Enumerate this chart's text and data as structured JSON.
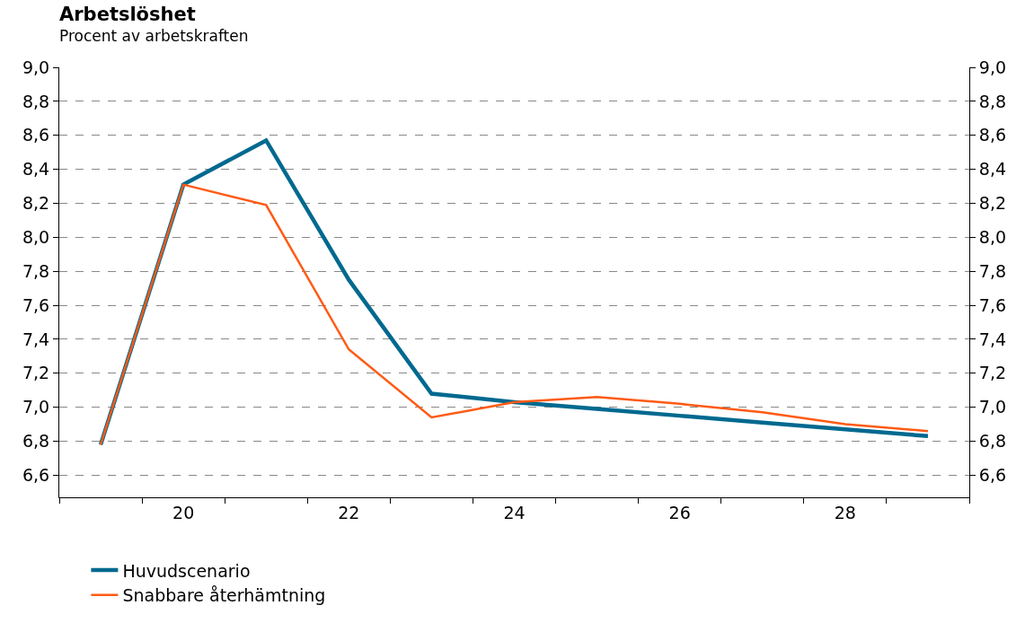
{
  "chart_data": {
    "type": "line",
    "title": "Arbetslöshet",
    "subtitle": "Procent av arbetskraften",
    "x": [
      19,
      20,
      21,
      22,
      23,
      24,
      25,
      26,
      27,
      28,
      29
    ],
    "series": [
      {
        "name": "Huvudscenario",
        "color": "#00698f",
        "values": [
          6.78,
          8.31,
          8.57,
          7.75,
          7.08,
          7.03,
          6.99,
          6.95,
          6.91,
          6.87,
          6.83
        ]
      },
      {
        "name": "Snabbare återhämtning",
        "color": "#ff5a14",
        "values": [
          6.78,
          8.31,
          8.19,
          7.34,
          6.94,
          7.03,
          7.06,
          7.02,
          6.97,
          6.9,
          6.86
        ]
      }
    ],
    "xlim": [
      18.5,
      29.5
    ],
    "xticks": [
      {
        "value": 18.5,
        "label": null
      },
      {
        "value": 19.5,
        "label": null
      },
      {
        "value": 20,
        "label": "20"
      },
      {
        "value": 20.5,
        "label": null
      },
      {
        "value": 21.5,
        "label": null
      },
      {
        "value": 22,
        "label": "22"
      },
      {
        "value": 22.5,
        "label": null
      },
      {
        "value": 23.5,
        "label": null
      },
      {
        "value": 24,
        "label": "24"
      },
      {
        "value": 24.5,
        "label": null
      },
      {
        "value": 25.5,
        "label": null
      },
      {
        "value": 26,
        "label": "26"
      },
      {
        "value": 26.5,
        "label": null
      },
      {
        "value": 27.5,
        "label": null
      },
      {
        "value": 28,
        "label": "28"
      },
      {
        "value": 28.5,
        "label": null
      },
      {
        "value": 29.5,
        "label": null
      }
    ],
    "ylim": [
      6.47,
      9.0
    ],
    "yticks": [
      {
        "value": 6.6,
        "label": "6,6"
      },
      {
        "value": 6.8,
        "label": "6,8"
      },
      {
        "value": 7.0,
        "label": "7,0"
      },
      {
        "value": 7.2,
        "label": "7,2"
      },
      {
        "value": 7.4,
        "label": "7,4"
      },
      {
        "value": 7.6,
        "label": "7,6"
      },
      {
        "value": 7.8,
        "label": "7,8"
      },
      {
        "value": 8.0,
        "label": "8,0"
      },
      {
        "value": 8.2,
        "label": "8,2"
      },
      {
        "value": 8.4,
        "label": "8,4"
      },
      {
        "value": 8.6,
        "label": "8,6"
      },
      {
        "value": 8.8,
        "label": "8,8"
      },
      {
        "value": 9.0,
        "label": "9,0"
      }
    ],
    "y2lim": [
      6.47,
      9.0
    ],
    "y2ticks": [
      {
        "value": 6.6,
        "label": "6,6"
      },
      {
        "value": 6.8,
        "label": "6,8"
      },
      {
        "value": 7.0,
        "label": "7,0"
      },
      {
        "value": 7.2,
        "label": "7,2"
      },
      {
        "value": 7.4,
        "label": "7,4"
      },
      {
        "value": 7.6,
        "label": "7,6"
      },
      {
        "value": 7.8,
        "label": "7,8"
      },
      {
        "value": 8.0,
        "label": "8,0"
      },
      {
        "value": 8.2,
        "label": "8,2"
      },
      {
        "value": 8.4,
        "label": "8,4"
      },
      {
        "value": 8.6,
        "label": "8,6"
      },
      {
        "value": 8.8,
        "label": "8,8"
      },
      {
        "value": 9.0,
        "label": "9,0"
      }
    ],
    "grid": "y",
    "legend": "bottom left",
    "marker": "none",
    "line_style": "solid"
  }
}
